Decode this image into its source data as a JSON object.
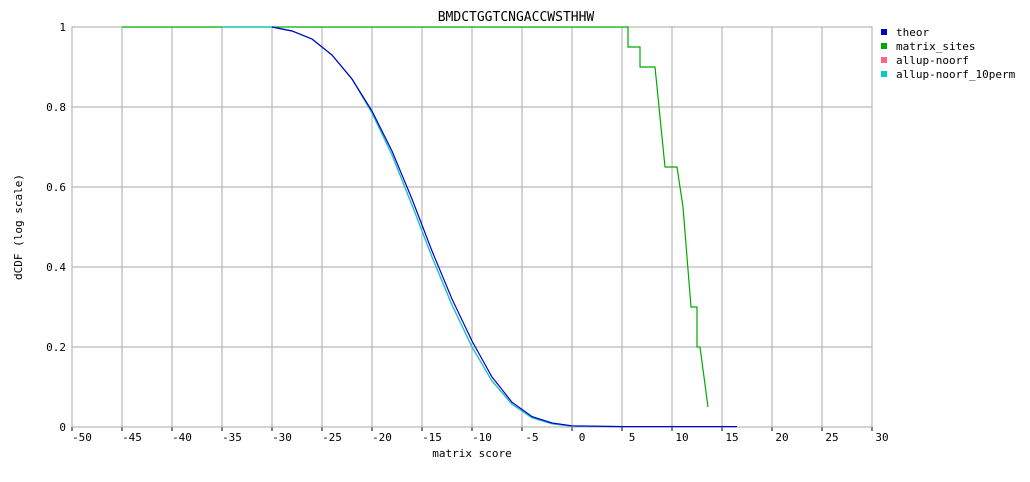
{
  "chart_data": {
    "type": "line",
    "title": "BMDCTGGTCNGACCWSTHHW",
    "x_label": "matrix score",
    "y_label": "dCDF (log scale)",
    "xlim": [
      -50,
      30
    ],
    "ylim": [
      0,
      1
    ],
    "xticks": [
      -50,
      -45,
      -40,
      -35,
      -30,
      -25,
      -20,
      -15,
      -10,
      -5,
      0,
      5,
      10,
      15,
      20,
      25,
      30
    ],
    "yticks": [
      0,
      0.2,
      0.4,
      0.6,
      0.8,
      1
    ],
    "grid": true,
    "legend": "top-right",
    "series": [
      {
        "name": "theor",
        "color": "#0000cc",
        "x": [
          -30,
          -28,
          -26,
          -24,
          -22,
          -20,
          -18,
          -16,
          -14,
          -12,
          -10,
          -8,
          -6,
          -4,
          -2,
          0,
          5,
          16.5
        ],
        "values": [
          1,
          0.99,
          0.97,
          0.93,
          0.87,
          0.79,
          0.69,
          0.57,
          0.44,
          0.32,
          0.215,
          0.125,
          0.062,
          0.026,
          0.01,
          0.003,
          0.001,
          0.001
        ]
      },
      {
        "name": "matrix_sites",
        "color": "#00aa00",
        "x": [
          -45,
          5.6,
          5.6,
          6.8,
          6.8,
          8.3,
          9.3,
          10.5,
          10.8,
          11.1,
          11.9,
          12.5,
          12.5,
          12.8,
          13.6
        ],
        "values": [
          1,
          1,
          0.95,
          0.95,
          0.9,
          0.9,
          0.65,
          0.65,
          0.6,
          0.55,
          0.3,
          0.3,
          0.2,
          0.2,
          0.05
        ]
      },
      {
        "name": "allup-noorf",
        "color": "#ff6680",
        "x": [
          -30,
          -28,
          -26,
          -24,
          -22,
          -20,
          -18,
          -16,
          -14,
          -12,
          -10,
          -8,
          -6,
          -4,
          -2,
          0,
          5
        ],
        "values": [
          1,
          0.99,
          0.97,
          0.93,
          0.87,
          0.785,
          0.68,
          0.555,
          0.425,
          0.305,
          0.2,
          0.115,
          0.057,
          0.023,
          0.008,
          0.002,
          0.001
        ]
      },
      {
        "name": "allup-noorf_10perm",
        "color": "#00cccc",
        "x": [
          -35,
          -30,
          -28,
          -26,
          -24,
          -22,
          -20,
          -18,
          -16,
          -14,
          -12,
          -10,
          -8,
          -6,
          -4,
          -2,
          0,
          5
        ],
        "values": [
          1,
          1,
          0.99,
          0.97,
          0.93,
          0.87,
          0.785,
          0.68,
          0.555,
          0.425,
          0.305,
          0.2,
          0.115,
          0.057,
          0.023,
          0.008,
          0.002,
          0.001
        ]
      }
    ]
  }
}
